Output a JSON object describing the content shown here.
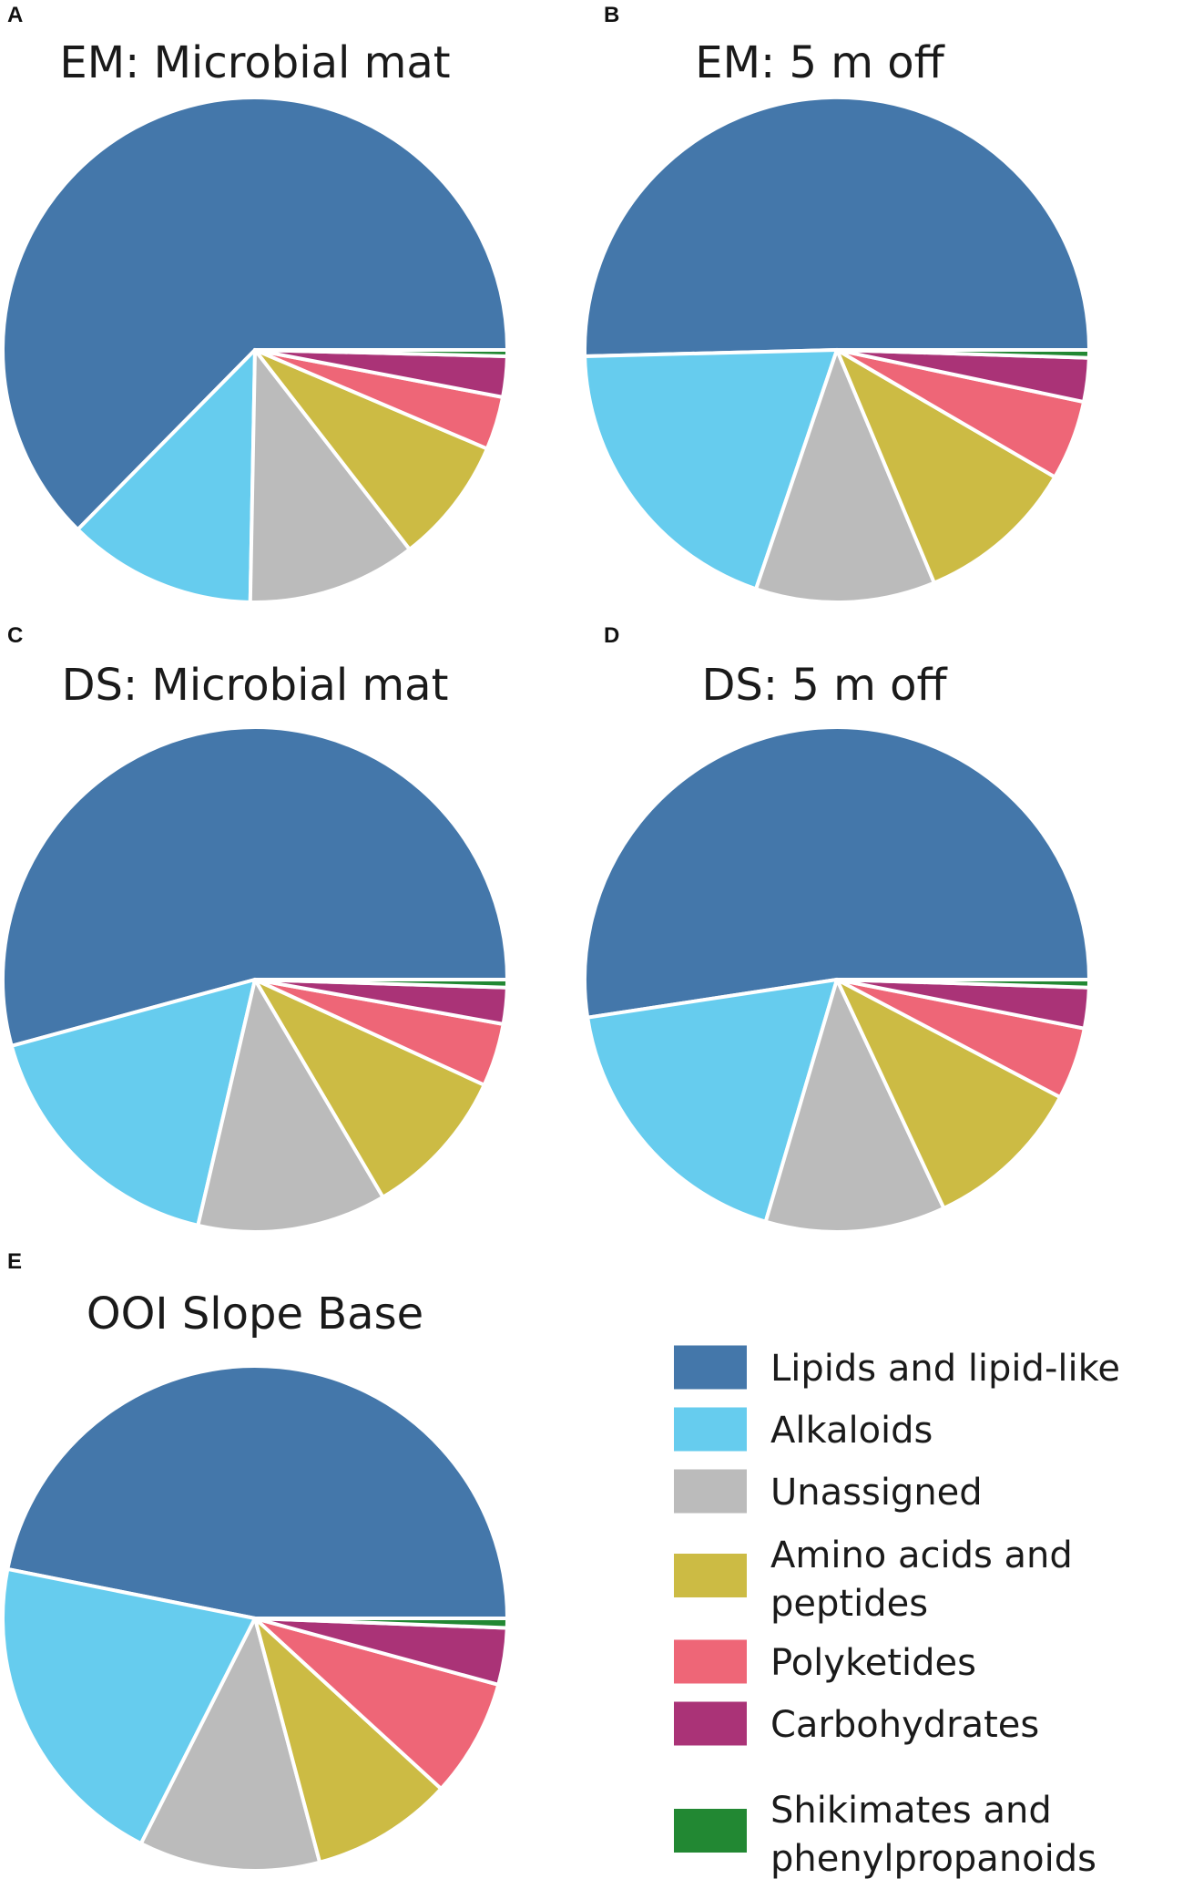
{
  "chart_data": [
    {
      "type": "pie",
      "panel": "A",
      "title": "EM: Microbial mat",
      "labels": [
        "Lipids and lipid-like",
        "Alkaloids",
        "Unassigned",
        "Amino acids and peptides",
        "Polyketides",
        "Carbohydrates",
        "Shikimates and phenylpropanoids"
      ],
      "values": [
        62.6,
        12.1,
        10.8,
        8.1,
        3.4,
        2.6,
        0.4
      ]
    },
    {
      "type": "pie",
      "panel": "B",
      "title": "EM: 5 m off",
      "labels": [
        "Lipids and lipid-like",
        "Alkaloids",
        "Unassigned",
        "Amino acids and peptides",
        "Polyketides",
        "Carbohydrates",
        "Shikimates and phenylpropanoids"
      ],
      "values": [
        50.4,
        19.4,
        11.5,
        10.3,
        5.1,
        2.8,
        0.5
      ]
    },
    {
      "type": "pie",
      "panel": "C",
      "title": "DS: Microbial mat",
      "labels": [
        "Lipids and lipid-like",
        "Alkaloids",
        "Unassigned",
        "Amino acids and peptides",
        "Polyketides",
        "Carbohydrates",
        "Shikimates and phenylpropanoids"
      ],
      "values": [
        53.8,
        17.0,
        12.0,
        9.6,
        4.0,
        2.3,
        0.5
      ]
    },
    {
      "type": "pie",
      "panel": "D",
      "title": "DS: 5 m off",
      "labels": [
        "Lipids and lipid-like",
        "Alkaloids",
        "Unassigned",
        "Amino acids and peptides",
        "Polyketides",
        "Carbohydrates",
        "Shikimates and phenylpropanoids"
      ],
      "values": [
        52.3,
        18.0,
        11.5,
        10.3,
        4.6,
        2.6,
        0.5
      ]
    },
    {
      "type": "pie",
      "panel": "E",
      "title": "OOI Slope Base",
      "labels": [
        "Lipids and lipid-like",
        "Alkaloids",
        "Unassigned",
        "Amino acids and peptides",
        "Polyketides",
        "Carbohydrates",
        "Shikimates and phenylpropanoids"
      ],
      "values": [
        46.5,
        20.5,
        11.5,
        9.0,
        7.5,
        3.6,
        0.6
      ]
    }
  ],
  "legend": [
    {
      "label_lines": [
        "Lipids and lipid-like"
      ],
      "color": "#4477aa"
    },
    {
      "label_lines": [
        "Alkaloids"
      ],
      "color": "#66ccee"
    },
    {
      "label_lines": [
        "Unassigned"
      ],
      "color": "#bbbbbb"
    },
    {
      "label_lines": [
        "Amino acids and",
        "peptides"
      ],
      "color": "#ccbb44"
    },
    {
      "label_lines": [
        "Polyketides"
      ],
      "color": "#ee6677"
    },
    {
      "label_lines": [
        "Carbohydrates"
      ],
      "color": "#aa3377"
    },
    {
      "label_lines": [
        "Shikimates and",
        "phenylpropanoids"
      ],
      "color": "#228833"
    }
  ],
  "colors": [
    "#4477aa",
    "#66ccee",
    "#bbbbbb",
    "#ccbb44",
    "#ee6677",
    "#aa3377",
    "#228833"
  ]
}
